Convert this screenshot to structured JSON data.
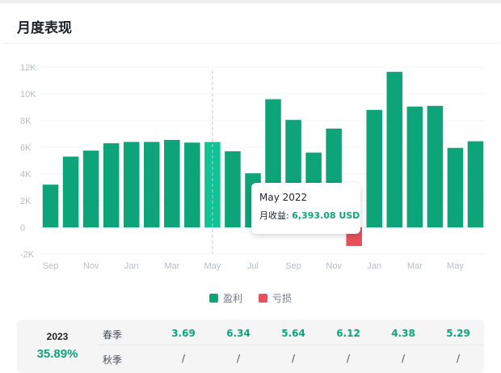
{
  "panel": {
    "title": "月度表现"
  },
  "chart_data": {
    "type": "bar",
    "y_ticks": [
      "12K",
      "10K",
      "8K",
      "6K",
      "4K",
      "2K",
      "0",
      "-2K"
    ],
    "ylim": [
      -2000,
      12000
    ],
    "grid": true,
    "categories": [
      "2021-09",
      "2021-10",
      "2021-11",
      "2021-12",
      "2022-01",
      "2022-02",
      "2022-03",
      "2022-04",
      "2022-05",
      "2022-06",
      "2022-07",
      "2022-08",
      "2022-09",
      "2022-10",
      "2022-11",
      "2022-12",
      "2023-01",
      "2023-02",
      "2023-03",
      "2023-04",
      "2023-05",
      "2023-06"
    ],
    "x_tick_labels": [
      "Sep",
      "",
      "Nov",
      "",
      "Jan",
      "",
      "Mar",
      "",
      "May",
      "",
      "Jul",
      "",
      "Sep",
      "",
      "Nov",
      "",
      "Jan",
      "",
      "Mar",
      "",
      "May",
      ""
    ],
    "values": [
      3200,
      5300,
      5750,
      6300,
      6400,
      6400,
      6550,
      6350,
      6393.08,
      5700,
      4050,
      9600,
      8050,
      5600,
      7400,
      -1400,
      8800,
      11650,
      9050,
      9100,
      5950,
      6450
    ],
    "highlight_index": 8,
    "colors": {
      "profit": "#0ea47a",
      "loss": "#e8505b",
      "highlight": "#10c394"
    },
    "legend_placement": "bottom-center",
    "legend": [
      {
        "label": "盈利",
        "color": "#0ea47a"
      },
      {
        "label": "亏损",
        "color": "#e8505b"
      }
    ]
  },
  "tooltip": {
    "date": "May 2022",
    "label": "月收益:",
    "value": "6,393.08 USD"
  },
  "summary": {
    "year": "2023",
    "year_return": "35.89%",
    "rows": [
      {
        "season": "春季",
        "values": [
          "3.69",
          "6.34",
          "5.64",
          "6.12",
          "4.38",
          "5.29"
        ]
      },
      {
        "season": "秋季",
        "values": [
          "/",
          "/",
          "/",
          "/",
          "/",
          "/"
        ]
      }
    ]
  }
}
